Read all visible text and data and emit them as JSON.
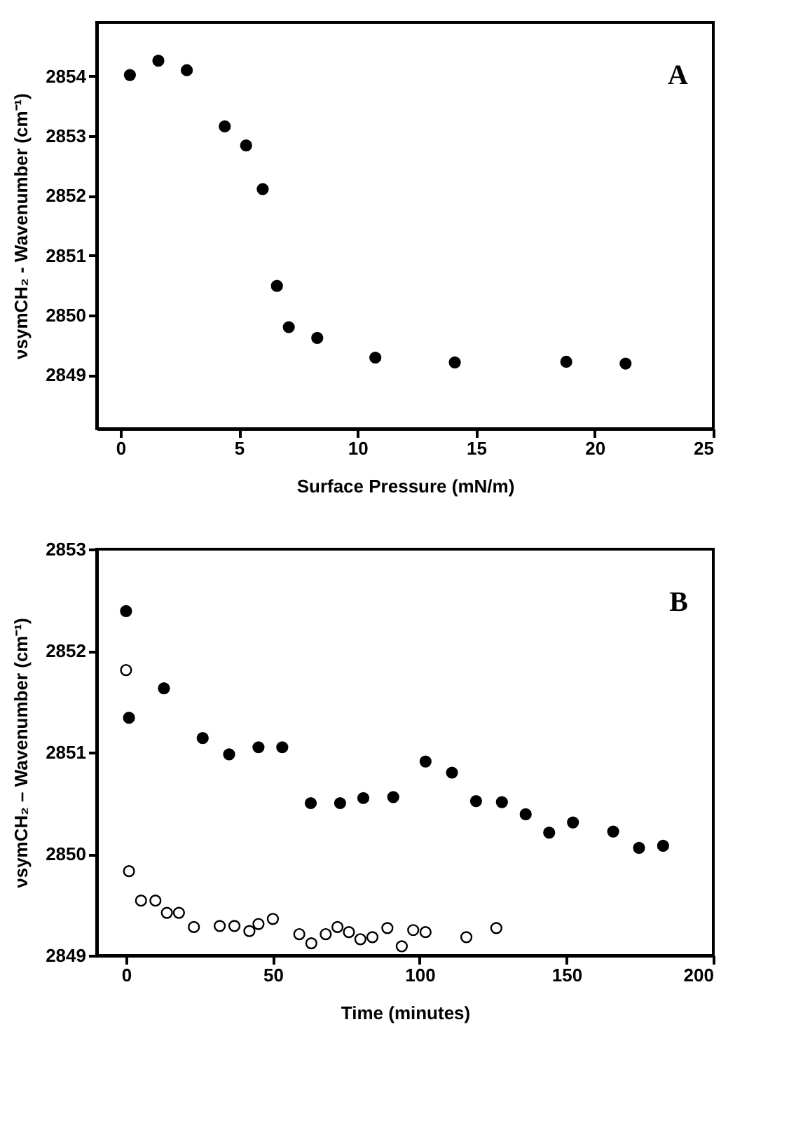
{
  "chart_data": [
    {
      "type": "scatter",
      "xlabel": "Surface Pressure (mN/m)",
      "ylabel": "νsymCH₂ - Wavenumber (cm⁻¹)",
      "annotations": [
        "A"
      ],
      "marker": "circle",
      "xlim": [
        -1,
        25
      ],
      "ylim": [
        2848.1,
        2854.9
      ],
      "xticks": [
        0,
        5,
        10,
        15,
        20,
        25
      ],
      "yticks": [
        2849,
        2850,
        2851,
        2852,
        2853,
        2854
      ],
      "series": [
        {
          "color": "#000000",
          "x": [
            0.4,
            1.6,
            2.8,
            4.4,
            5.3,
            6.0,
            6.6,
            7.1,
            8.3,
            10.75,
            14.1,
            18.8,
            21.3
          ],
          "values": [
            2854.02,
            2854.26,
            2854.1,
            2853.16,
            2852.84,
            2852.11,
            2850.49,
            2849.8,
            2849.62,
            2849.29,
            2849.21,
            2849.22,
            2849.19
          ]
        }
      ]
    },
    {
      "type": "scatter",
      "xlabel": "Time (minutes)",
      "ylabel": "νsymCH₂ – Wavenumber (cm⁻¹)",
      "annotations": [
        "B"
      ],
      "marker": "circle",
      "xlim": [
        -10,
        200
      ],
      "ylim": [
        2849,
        2853
      ],
      "xticks": [
        0,
        50,
        100,
        150,
        200
      ],
      "yticks": [
        2849,
        2850,
        2851,
        2852,
        2853
      ],
      "series": [
        {
          "color": "#000000",
          "x": [
            0,
            1,
            12.9,
            26.1,
            35.1,
            45.1,
            53.2,
            62.9,
            72.9,
            80.8,
            91.0,
            102.0,
            111.0,
            119.2,
            128.0,
            136.1,
            144.1,
            152.2,
            165.9,
            174.7,
            182.9
          ],
          "values": [
            2852.39,
            2851.34,
            2851.63,
            2851.14,
            2850.98,
            2851.05,
            2851.05,
            2850.5,
            2850.5,
            2850.55,
            2850.56,
            2850.91,
            2850.8,
            2850.52,
            2850.51,
            2850.39,
            2850.21,
            2850.31,
            2850.22,
            2850.06,
            2850.08
          ]
        },
        {
          "color": "#ffffff",
          "x": [
            0,
            1,
            5.1,
            10,
            13.9,
            18.0,
            23.1,
            31.9,
            36.9,
            42.0,
            45.1,
            50.0,
            59.0,
            63.1,
            68.0,
            72.0,
            75.9,
            79.8,
            83.9,
            89.0,
            93.9,
            97.8,
            102.0,
            115.9,
            126.1
          ],
          "values": [
            2851.81,
            2849.83,
            2849.54,
            2849.54,
            2849.42,
            2849.42,
            2849.28,
            2849.29,
            2849.29,
            2849.24,
            2849.31,
            2849.36,
            2849.21,
            2849.12,
            2849.21,
            2849.28,
            2849.23,
            2849.16,
            2849.18,
            2849.27,
            2849.09,
            2849.25,
            2849.23,
            2849.18,
            2849.27
          ]
        }
      ]
    }
  ]
}
